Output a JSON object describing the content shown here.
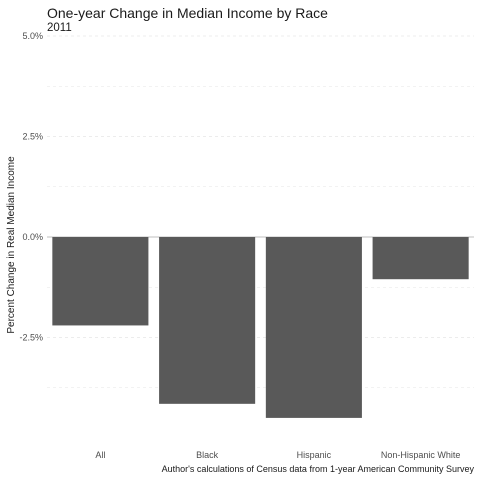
{
  "chart_data": {
    "type": "bar",
    "title": "One-year Change in Median Income by Race",
    "subtitle": "2011",
    "xlabel": "",
    "ylabel": "Percent Change in Real Median Income",
    "caption": "Author's calculations of Census data from 1-year American Community Survey",
    "categories": [
      "All",
      "Black",
      "Hispanic",
      "Non-Hispanic White"
    ],
    "values": [
      -2.2,
      -4.15,
      -4.5,
      -1.05
    ],
    "ylim": [
      -5.0,
      5.0
    ],
    "yticks": [
      -2.5,
      0.0,
      2.5,
      5.0
    ],
    "ytick_labels": [
      "-2.5%",
      "0.0%",
      "2.5%",
      "5.0%"
    ],
    "grid": true,
    "legend": "none",
    "colors": {
      "bar": "#595959",
      "grid": "#e6e6e6",
      "zero_line": "#bfbfbf"
    }
  }
}
